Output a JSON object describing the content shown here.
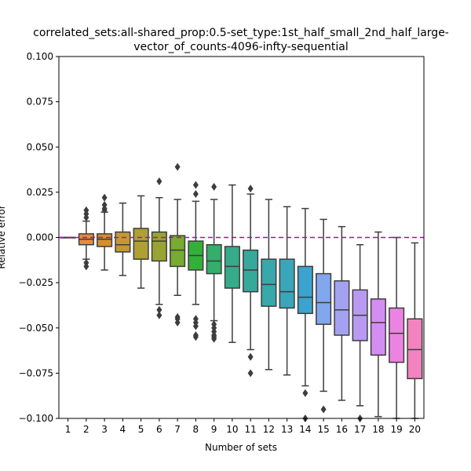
{
  "chart_data": {
    "type": "box",
    "title_line1": "correlated_sets:all-shared_prop:0.5-set_type:1st_half_small_2nd_half_large-",
    "title_line2": "vector_of_counts-4096-infty-sequential",
    "xlabel": "Number of sets",
    "ylabel": "Relative error",
    "ylim": [
      -0.1,
      0.1
    ],
    "yticks": [
      "0.100",
      "0.075",
      "0.050",
      "0.025",
      "0.000",
      "−0.025",
      "−0.050",
      "−0.075",
      "−0.100"
    ],
    "ytick_values": [
      0.1,
      0.075,
      0.05,
      0.025,
      0.0,
      -0.025,
      -0.05,
      -0.075,
      -0.1
    ],
    "categories": [
      "1",
      "2",
      "3",
      "4",
      "5",
      "6",
      "7",
      "8",
      "9",
      "10",
      "11",
      "12",
      "13",
      "14",
      "15",
      "16",
      "17",
      "18",
      "19",
      "20"
    ],
    "reference_line": {
      "y": 0.0,
      "color": "#bf00bf",
      "style": "dashed"
    },
    "grid": false,
    "boxes": [
      {
        "category": "1",
        "color": "#f77189",
        "q1": 0.0,
        "median": 0.0,
        "q3": 0.0,
        "whisker_low": 0.0,
        "whisker_high": 0.0,
        "outliers": []
      },
      {
        "category": "2",
        "color": "#e98a3c",
        "q1": -0.004,
        "median": -0.001,
        "q3": 0.002,
        "whisker_low": -0.012,
        "whisker_high": 0.009,
        "outliers": [
          0.015,
          0.013,
          0.011,
          -0.014,
          -0.016
        ]
      },
      {
        "category": "3",
        "color": "#d6902b",
        "q1": -0.005,
        "median": -0.001,
        "q3": 0.002,
        "whisker_low": -0.018,
        "whisker_high": 0.014,
        "outliers": [
          0.022,
          0.018,
          0.016,
          0.015
        ]
      },
      {
        "category": "4",
        "color": "#c29a31",
        "q1": -0.008,
        "median": -0.004,
        "q3": 0.003,
        "whisker_low": -0.021,
        "whisker_high": 0.019,
        "outliers": []
      },
      {
        "category": "5",
        "color": "#aea032",
        "q1": -0.012,
        "median": -0.002,
        "q3": 0.005,
        "whisker_low": -0.028,
        "whisker_high": 0.023,
        "outliers": []
      },
      {
        "category": "6",
        "color": "#97a431",
        "q1": -0.013,
        "median": -0.002,
        "q3": 0.003,
        "whisker_low": -0.037,
        "whisker_high": 0.022,
        "outliers": [
          0.031,
          -0.04,
          -0.043
        ]
      },
      {
        "category": "7",
        "color": "#77ab31",
        "q1": -0.016,
        "median": -0.007,
        "q3": 0.001,
        "whisker_low": -0.032,
        "whisker_high": 0.021,
        "outliers": [
          0.039,
          -0.044,
          -0.045,
          -0.047
        ]
      },
      {
        "category": "8",
        "color": "#33b039",
        "q1": -0.018,
        "median": -0.01,
        "q3": -0.002,
        "whisker_low": -0.037,
        "whisker_high": 0.02,
        "outliers": [
          0.029,
          0.024,
          -0.045,
          -0.047,
          -0.049,
          -0.054,
          -0.055
        ]
      },
      {
        "category": "9",
        "color": "#35ad6b",
        "q1": -0.02,
        "median": -0.013,
        "q3": -0.004,
        "whisker_low": -0.046,
        "whisker_high": 0.021,
        "outliers": [
          0.028,
          -0.048,
          -0.05,
          -0.052,
          -0.054,
          -0.055,
          -0.056
        ]
      },
      {
        "category": "10",
        "color": "#36ab89",
        "q1": -0.028,
        "median": -0.016,
        "q3": -0.005,
        "whisker_low": -0.058,
        "whisker_high": 0.029,
        "outliers": []
      },
      {
        "category": "11",
        "color": "#37a99b",
        "q1": -0.03,
        "median": -0.018,
        "q3": -0.007,
        "whisker_low": -0.062,
        "whisker_high": 0.024,
        "outliers": [
          0.027,
          -0.066,
          -0.075
        ]
      },
      {
        "category": "12",
        "color": "#38a8aa",
        "q1": -0.038,
        "median": -0.026,
        "q3": -0.012,
        "whisker_low": -0.073,
        "whisker_high": 0.021,
        "outliers": []
      },
      {
        "category": "13",
        "color": "#39a6b9",
        "q1": -0.039,
        "median": -0.03,
        "q3": -0.012,
        "whisker_low": -0.076,
        "whisker_high": 0.017,
        "outliers": []
      },
      {
        "category": "14",
        "color": "#3ba3cd",
        "q1": -0.042,
        "median": -0.033,
        "q3": -0.016,
        "whisker_low": -0.082,
        "whisker_high": 0.016,
        "outliers": [
          -0.086,
          -0.1
        ]
      },
      {
        "category": "15",
        "color": "#81a7ed",
        "q1": -0.048,
        "median": -0.036,
        "q3": -0.02,
        "whisker_low": -0.085,
        "whisker_high": 0.01,
        "outliers": [
          -0.095
        ]
      },
      {
        "category": "16",
        "color": "#a3a2f0",
        "q1": -0.054,
        "median": -0.04,
        "q3": -0.024,
        "whisker_low": -0.09,
        "whisker_high": 0.006,
        "outliers": []
      },
      {
        "category": "17",
        "color": "#b89af2",
        "q1": -0.057,
        "median": -0.043,
        "q3": -0.029,
        "whisker_low": -0.093,
        "whisker_high": -0.004,
        "outliers": [
          -0.1
        ]
      },
      {
        "category": "18",
        "color": "#d48ef1",
        "q1": -0.065,
        "median": -0.047,
        "q3": -0.034,
        "whisker_low": -0.099,
        "whisker_high": 0.003,
        "outliers": []
      },
      {
        "category": "19",
        "color": "#ec83e2",
        "q1": -0.069,
        "median": -0.053,
        "q3": -0.039,
        "whisker_low": -0.1,
        "whisker_high": 0.0,
        "outliers": []
      },
      {
        "category": "20",
        "color": "#f283be",
        "q1": -0.078,
        "median": -0.062,
        "q3": -0.045,
        "whisker_low": -0.1,
        "whisker_high": -0.003,
        "outliers": []
      }
    ]
  }
}
